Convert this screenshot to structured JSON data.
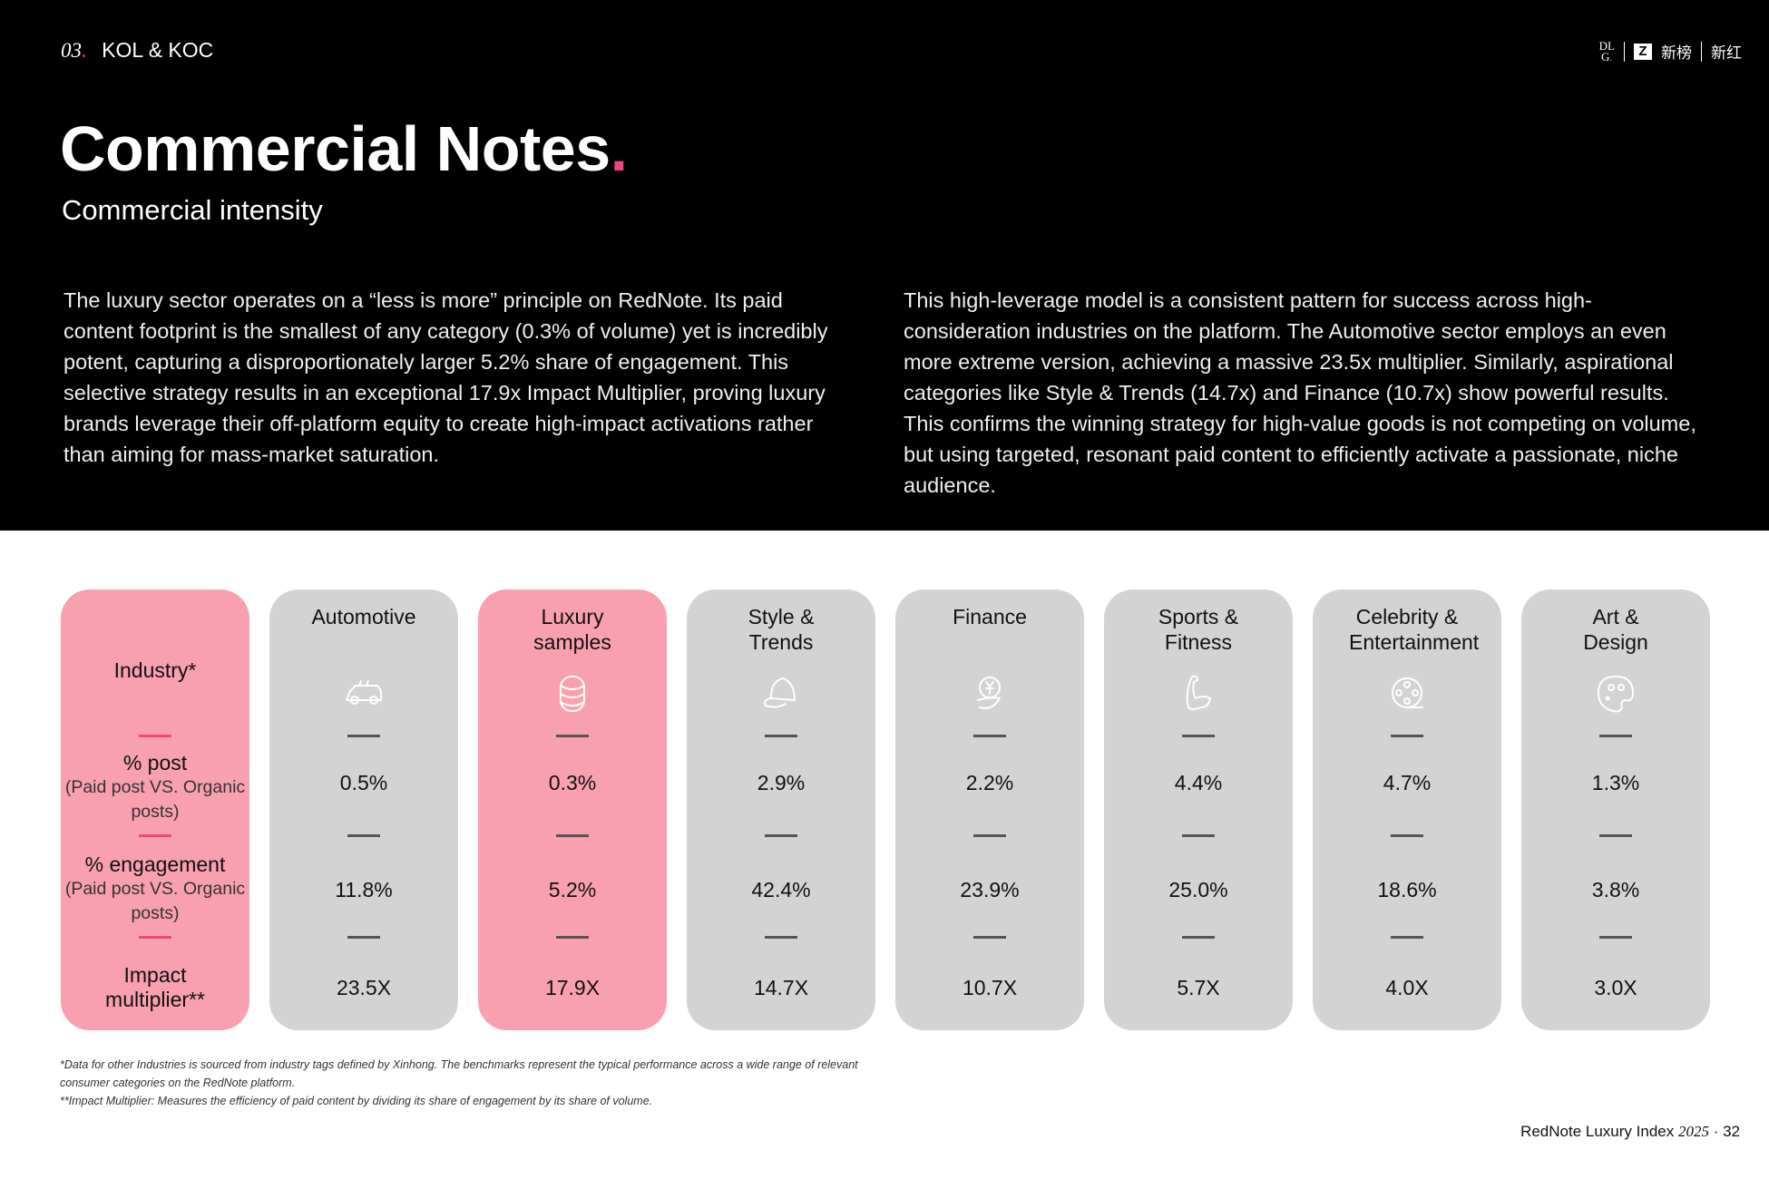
{
  "header": {
    "section_number": "03",
    "section_title": "KOL & KOC",
    "logo_text": [
      "DL G",
      "新榜",
      "新红"
    ],
    "title": "Commercial Notes",
    "subtitle": "Commercial intensity",
    "accent_color": "#f0467a"
  },
  "paragraphs": {
    "left": "The luxury sector operates on a “less is more” principle on RedNote. Its paid content footprint is the smallest of any category (0.3% of volume) yet is incredibly potent, capturing a disproportionately larger 5.2% share of engagement. This selective strategy results in an exceptional 17.9x Impact Multiplier, proving luxury brands leverage their off-platform equity to create high-impact activations rather than aiming for mass-market saturation.",
    "right": "This high-leverage model is a consistent pattern for success across high-consideration industries on the platform. The Automotive sector employs an even more extreme version, achieving a massive 23.5x multiplier. Similarly, aspirational categories like Style & Trends (14.7x) and Finance (10.7x) show powerful results. This confirms the winning strategy for high-value goods is not competing on volume, but using targeted, resonant paid content to efficiently activate a passionate, niche audience."
  },
  "table": {
    "row_header": {
      "industry": "Industry*",
      "post_label": "% post",
      "post_sub": "(Paid post VS. Organic posts)",
      "engagement_label": "% engagement",
      "engagement_sub": "(Paid post VS. Organic posts)",
      "impact_label": "Impact multiplier**"
    },
    "columns": [
      {
        "name": "Automotive",
        "icon": "car-icon",
        "post": "0.5%",
        "engagement": "11.8%",
        "impact": "23.5X",
        "highlight": false
      },
      {
        "name": "Luxury samples",
        "icon": "coin-stack-icon",
        "post": "0.3%",
        "engagement": "5.2%",
        "impact": "17.9X",
        "highlight": true
      },
      {
        "name": "Style & Trends",
        "icon": "cap-icon",
        "post": "2.9%",
        "engagement": "42.4%",
        "impact": "14.7X",
        "highlight": false
      },
      {
        "name": "Finance",
        "icon": "yuan-hand-icon",
        "post": "2.2%",
        "engagement": "23.9%",
        "impact": "10.7X",
        "highlight": false
      },
      {
        "name": "Sports & Fitness",
        "icon": "muscle-arm-icon",
        "post": "4.4%",
        "engagement": "25.0%",
        "impact": "5.7X",
        "highlight": false
      },
      {
        "name": "Celebrity & Entertainment",
        "icon": "film-reel-icon",
        "post": "4.7%",
        "engagement": "18.6%",
        "impact": "4.0X",
        "highlight": false
      },
      {
        "name": "Art & Design",
        "icon": "palette-icon",
        "post": "1.3%",
        "engagement": "3.8%",
        "impact": "3.0X",
        "highlight": false
      }
    ],
    "highlight_color": "#f9a0b0",
    "default_color": "#d3d3d3"
  },
  "footnotes": [
    "*Data for other Industries is sourced from industry tags defined by Xinhong. The benchmarks represent the typical performance across a wide range of relevant consumer categories on the RedNote platform.",
    "**Impact Multiplier: Measures the efficiency of paid content by dividing its share of engagement by its share of volume."
  ],
  "page_footer": {
    "report": "RedNote Luxury Index",
    "year": "2025",
    "page": "32"
  }
}
